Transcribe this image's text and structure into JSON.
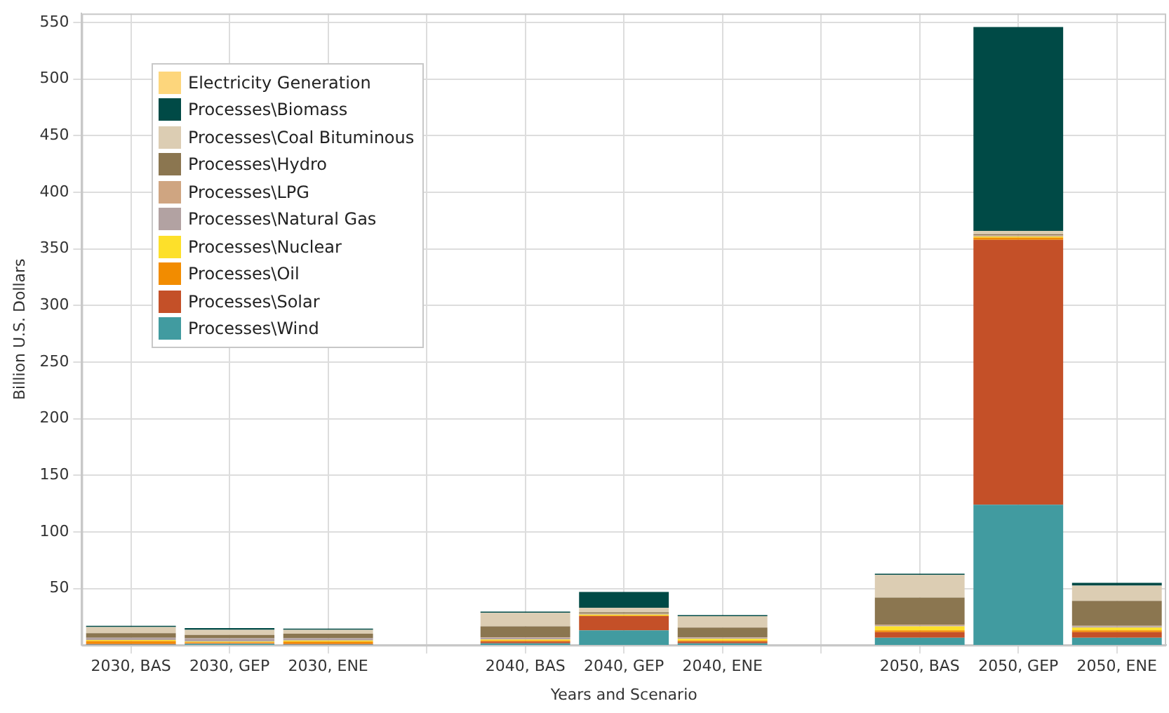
{
  "chart_data": {
    "type": "bar",
    "stacked": true,
    "xlabel": "Years and Scenario",
    "ylabel": "Billion U.S. Dollars",
    "categories": [
      "2030, BAS",
      "2030, GEP",
      "2030, ENE",
      null,
      "2040, BAS",
      "2040, GEP",
      "2040, ENE",
      null,
      "2050, BAS",
      "2050, GEP",
      "2050, ENE"
    ],
    "ylim": [
      0,
      558
    ],
    "yticks": [
      50,
      100,
      150,
      200,
      250,
      300,
      350,
      400,
      450,
      500,
      550
    ],
    "grid": true,
    "legend": "top left",
    "series": [
      {
        "name": "Processes\\Wind",
        "color": "#419ba0",
        "values": [
          0.5,
          1,
          0.5,
          null,
          1.5,
          13,
          1.5,
          null,
          6.5,
          124,
          6.5
        ]
      },
      {
        "name": "Processes\\Solar",
        "color": "#c45028",
        "values": [
          0.5,
          0.5,
          0.5,
          null,
          1.5,
          12.5,
          1.5,
          null,
          5,
          234,
          5
        ]
      },
      {
        "name": "Processes\\Oil",
        "color": "#f28c00",
        "values": [
          2.5,
          1,
          2,
          null,
          1,
          0.5,
          1,
          null,
          1.5,
          2,
          1.5
        ]
      },
      {
        "name": "Processes\\Nuclear",
        "color": "#fde02a",
        "values": [
          1,
          0.5,
          1,
          null,
          1,
          1,
          1.5,
          null,
          3.5,
          1,
          2.5
        ]
      },
      {
        "name": "Processes\\Natural Gas",
        "color": "#b2a2a2",
        "values": [
          2,
          3,
          2,
          null,
          1.5,
          0.5,
          1,
          null,
          1,
          0.5,
          1
        ]
      },
      {
        "name": "Processes\\LPG",
        "color": "#cfa581",
        "values": [
          0,
          0,
          0,
          null,
          0.5,
          0.5,
          0.5,
          null,
          0.5,
          0.5,
          0.5
        ]
      },
      {
        "name": "Processes\\Hydro",
        "color": "#8b7650",
        "values": [
          4,
          3,
          4,
          null,
          9.5,
          1,
          8.5,
          null,
          24,
          1,
          22
        ]
      },
      {
        "name": "Processes\\Coal Bituminous",
        "color": "#dccdb3",
        "values": [
          5.5,
          4.5,
          3.5,
          null,
          12,
          4,
          10,
          null,
          20,
          3,
          13.5
        ]
      },
      {
        "name": "Processes\\Biomass",
        "color": "#004a46",
        "values": [
          1,
          1.5,
          1,
          null,
          1,
          14,
          1,
          null,
          1,
          180,
          2.5
        ]
      },
      {
        "name": "Electricity Generation",
        "color": "#fdd67c",
        "values": [
          0,
          0,
          0,
          null,
          0,
          0,
          0,
          null,
          0,
          0,
          0
        ]
      }
    ]
  }
}
